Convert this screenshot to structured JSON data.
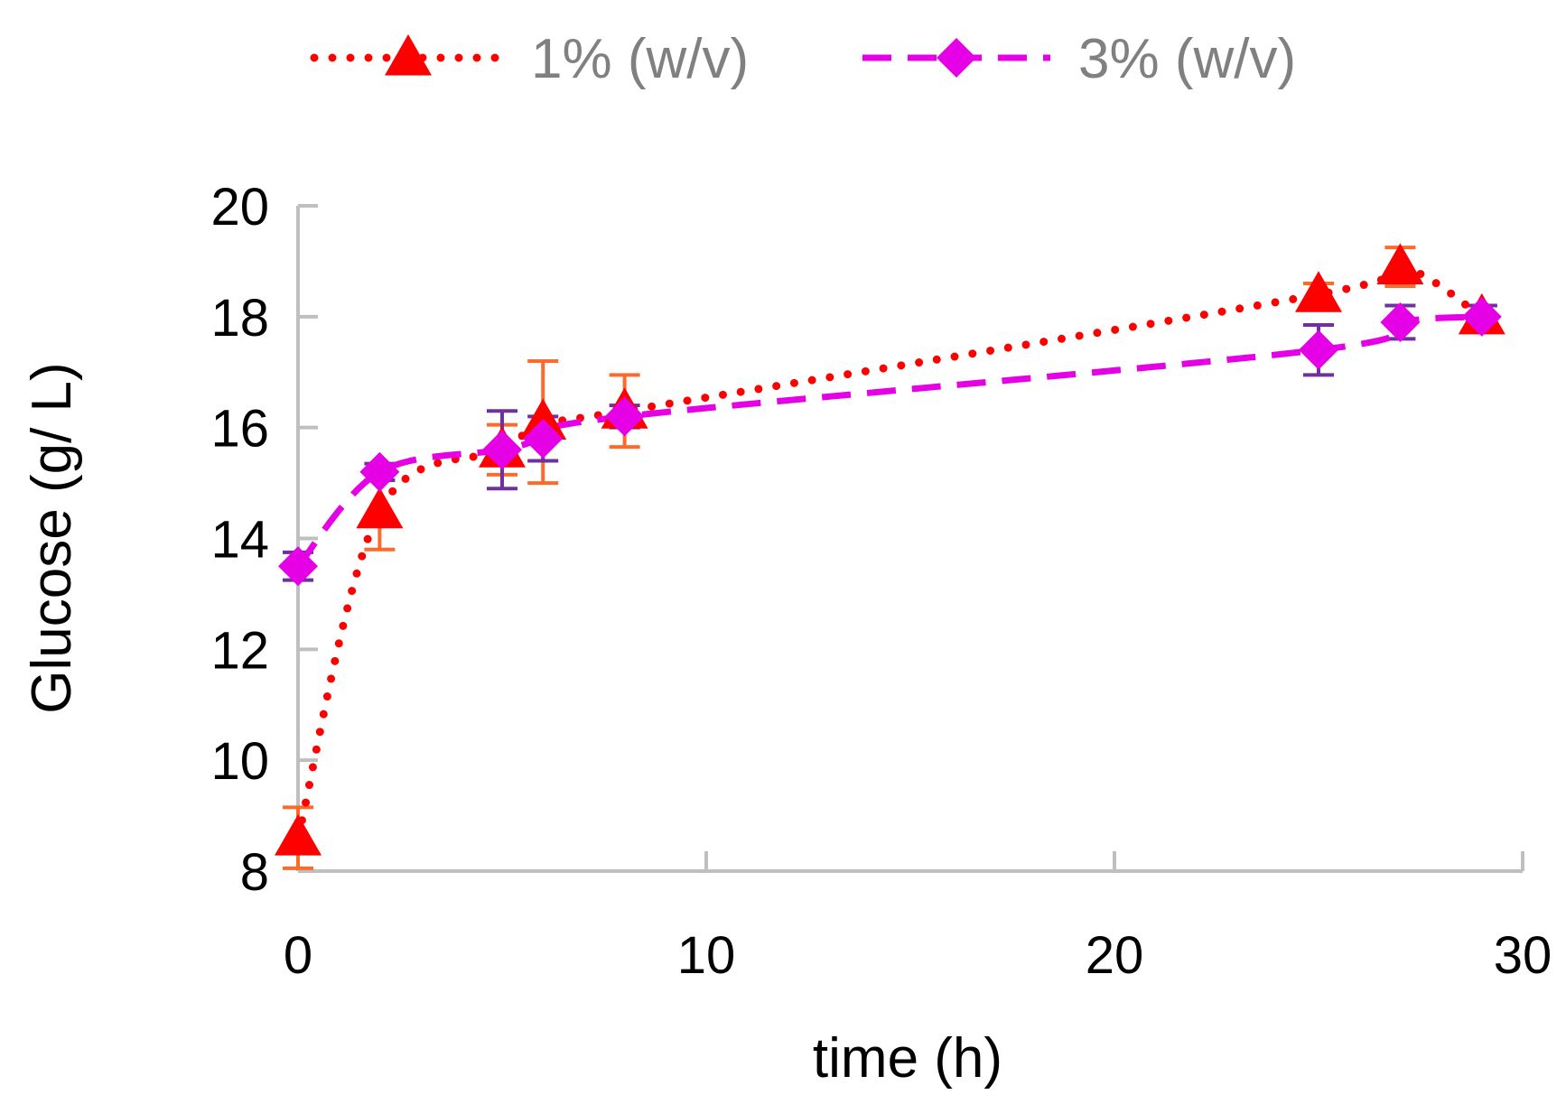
{
  "chart_data": {
    "type": "line",
    "xlabel": "time (h)",
    "ylabel": "Glucose (g/ L)",
    "xlim": [
      0,
      30
    ],
    "ylim": [
      8,
      20
    ],
    "xticks": [
      0,
      10,
      20,
      30
    ],
    "yticks": [
      8,
      10,
      12,
      14,
      16,
      18,
      20
    ],
    "grid": false,
    "legend_position": "top",
    "series": [
      {
        "name": "1% (w/v)",
        "color": "#ff0000",
        "error_color": "#ff6a2a",
        "marker": "triangle",
        "line_style": "dotted",
        "x": [
          0,
          2,
          5,
          6,
          8,
          25,
          27,
          29
        ],
        "y": [
          8.6,
          14.5,
          15.6,
          16.1,
          16.3,
          18.4,
          18.9,
          18.0
        ],
        "error": [
          0.55,
          0.7,
          0.45,
          1.1,
          0.65,
          0.2,
          0.35,
          0.2
        ]
      },
      {
        "name": "3% (w/v)",
        "color": "#e600e6",
        "error_color": "#7030a0",
        "marker": "diamond",
        "line_style": "dashed",
        "x": [
          0,
          2,
          5,
          6,
          8,
          25,
          27,
          29
        ],
        "y": [
          13.5,
          15.2,
          15.6,
          15.8,
          16.2,
          17.4,
          17.9,
          18.0
        ],
        "error": [
          0.25,
          0.15,
          0.7,
          0.4,
          0.2,
          0.45,
          0.3,
          0.2
        ]
      }
    ]
  }
}
